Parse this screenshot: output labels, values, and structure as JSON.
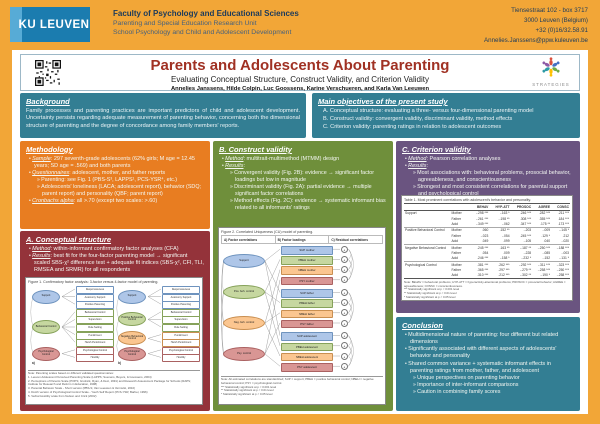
{
  "header": {
    "logo_text": "KU LEUVEN",
    "faculty": "Faculty of Psychology and Educational Sciences",
    "unit": "Parenting and Special Education Research Unit",
    "school": "School Psychology and Child and Adolescent Development",
    "address_lines": [
      "Tiensestraat 102 - box 3717",
      "3000 Leuven (Belgium)",
      "+32 (0)16/32.58.91",
      "Annelies.Janssens@ppw.kuleuven.be"
    ]
  },
  "title_block": {
    "title": "Parents and Adolescents About Parenting",
    "subtitle": "Evaluating Conceptual Structure, Construct Validity, and Criterion Validity",
    "authors": "Annelies Janssens, Hilde Colpin, Luc Goossens, Karine Verschueren, and Karla Van Leeuwen",
    "logo_caption": "STRATEGIES"
  },
  "boxes": {
    "background": {
      "title": "Background",
      "text": "Family processes and parenting practices are important predictors of child and adolescent development. Uncertainty persists regarding adequate measurement of parenting behavior, concerning both the dimensional structure of parenting and the degree of concordance among family members' reports."
    },
    "objectives": {
      "title": "Main objectives of the present study",
      "items": [
        "A. Conceptual structure: evaluating a three- versus four-dimensional parenting model",
        "B. Construct validity: convergent validity, discriminant validity, method effects",
        "C. Criterion validity: parenting ratings in relation to adolescent outcomes"
      ]
    },
    "methodology": {
      "title": "Methodology",
      "bullets": [
        {
          "lead": "Sample",
          "rest": ": 297 seventh-grade adolescents (62% girls; M age = 12.45 years; SD age = .569) and both parents"
        },
        {
          "lead": "Questionnaires",
          "rest": ": adolescent, mother, and father reports",
          "subs": [
            "Parenting: see Fig. 1 (PBS-S³, LAPPS¹, PCS-YSR⁴, etc.)",
            "Adolescents' loneliness (LACA; adolescent report), behavior (SDQ; parent report) and personality (QBF; parent report)"
          ]
        },
        {
          "lead": "Cronbachs alpha",
          "rest": ": all >.70 (except two scales: >.60)"
        }
      ]
    },
    "conceptual": {
      "title": "A. Conceptual structure",
      "bullets": [
        {
          "lead": "Method",
          "rest": ": within-informant confirmatory factor analyses (CFA)"
        },
        {
          "lead": "Results",
          "rest": ": best fit for the four-factor parenting model → significant scaled SBS-χ² difference test + adequate fit indices (SBS-χ², CFI, TLI, RMSEA and SRMR) for all respondents"
        }
      ]
    },
    "construct": {
      "title": "B. Construct validity",
      "bullets": [
        {
          "lead": "Method",
          "rest": ": multitrait-multimethod (MTMM) design"
        },
        {
          "lead": "Results",
          "rest": ":",
          "subs": [
            "Convergent validity (Fig. 2B): evidence → significant factor loadings but low in magnitude",
            "Discriminant validity (Fig. 2A): partial evidence → multiple significant factor correlations",
            "Method effects (Fig. 2C): evidence → systematic informant bias related to all informants' ratings"
          ]
        }
      ]
    },
    "criterion": {
      "title": "C. Criterion validity",
      "bullets": [
        {
          "lead": "Method",
          "rest": ": Pearson correlation analyses"
        },
        {
          "lead": "Results",
          "rest": ":",
          "subs": [
            "Most associations with: behavioral problems, prosocial behavior, agreeableness, and conscientiousness",
            "Strongest and most consistent correlations for parental support and psychological control"
          ]
        }
      ]
    },
    "conclusion": {
      "title": "Conclusion",
      "bullets": [
        {
          "text": "Multidimensional nature of parenting: four different but related dimensions"
        },
        {
          "text": "Significantly associated with different aspects of adolescents' behavior and personality"
        },
        {
          "text": "Shared common variance + systematic informant effects in parenting ratings from mother, father, and adolescent",
          "subs": [
            "Unique perspectives on parenting behavior",
            "Importance of inter-informant comparisons",
            "Caution in combining family scores"
          ]
        }
      ]
    }
  },
  "palette": {
    "fill": {
      "blue": "#AEC6E8",
      "green": "#C6D7A0",
      "orange": "#FBC690",
      "red": "#D99694"
    },
    "border": {
      "blue": "#6E93BE",
      "green": "#86A25A",
      "orange": "#C98F51",
      "red": "#AA6161"
    }
  },
  "figure1": {
    "caption": "Figure 1. Confirmatory factor analysis: 3-factor versus 4-factor model of parenting.",
    "indicators": [
      "Responsiveness",
      "Autonomy Support",
      "Positive Parenting",
      "Behavioral Control",
      "Supervision",
      "Rule Setting",
      "Punishment",
      "Harsh Punishment",
      "Psychological Control",
      "Hostility"
    ],
    "models": [
      {
        "label": "a)",
        "factors": [
          {
            "name": "Support",
            "color": "blue"
          },
          {
            "name": "Behavioral Control",
            "color": "green"
          },
          {
            "name": "Psychological Control",
            "color": "red"
          }
        ],
        "groups": [
          [
            0,
            1,
            2
          ],
          [
            3,
            4,
            5,
            6,
            7
          ],
          [
            8,
            9
          ]
        ]
      },
      {
        "label": "b)",
        "factors": [
          {
            "name": "Support",
            "color": "blue"
          },
          {
            "name": "Positive Behavioral Control",
            "color": "green"
          },
          {
            "name": "Negative Behavioral Control",
            "color": "orange"
          },
          {
            "name": "Psychological Control",
            "color": "red"
          }
        ],
        "groups": [
          [
            0,
            1,
            2
          ],
          [
            3,
            4,
            5
          ],
          [
            6,
            7
          ],
          [
            8,
            9
          ]
        ]
      }
    ],
    "notes": [
      "Note: Parenting scales based on different validated questionnaires:",
      "1.  Leuven Adolescent Perceived Parenting Scale (LAPPS; Soenens, Beyers, & Goossens, 2004)",
      "2.  Perceptions of Parents Scale (POPS; Grolnick, Ryan, & Deci, 1991) and Research Assessment Package for Schools (RAPS; Institute for Research and Reform in Education, 1998)",
      "3.  Parental Behavior Scale - Short version (PBS-S; Van Leeuwen & Vermulst, 2010)",
      "4.  Dutch version of Psychological Control Scale - Youth Self Report (PCS-YSR; Barber, 1996)",
      "5.  Verbal Hostility scale from Nelson and Crick (2002)"
    ]
  },
  "figure2": {
    "caption": "Figure 2. Correlated Uniqueness (CU) model of parenting.",
    "panels": [
      "A) Factor correlations",
      "B) Factor loadings",
      "C) Residual correlations"
    ],
    "latents": [
      {
        "name": "Support",
        "color": "blue"
      },
      {
        "name": "Pos. beh. control",
        "color": "green"
      },
      {
        "name": "Neg. beh. control",
        "color": "orange"
      },
      {
        "name": "Psy. control",
        "color": "red"
      }
    ],
    "manifests": [
      {
        "label": "SUP mother",
        "color": "blue"
      },
      {
        "label": "PBEH mother",
        "color": "green"
      },
      {
        "label": "NBEH mother",
        "color": "orange"
      },
      {
        "label": "PSY mother",
        "color": "red"
      },
      {
        "label": "SUP father",
        "color": "blue"
      },
      {
        "label": "PBEH father",
        "color": "green"
      },
      {
        "label": "NBEH father",
        "color": "orange"
      },
      {
        "label": "PSY father",
        "color": "red"
      },
      {
        "label": "SUP adolescent",
        "color": "blue"
      },
      {
        "label": "PBEH adolescent",
        "color": "green"
      },
      {
        "label": "NBEH adolescent",
        "color": "orange"
      },
      {
        "label": "PSY adolescent",
        "color": "red"
      }
    ],
    "residual_label": "e",
    "notes": [
      "Note: All estimated correlations are standardized; SUP = support; PBEH = positive behavioral control; NBEH = negative behavioral control; PSY = psychological control.",
      "***  Statistically significant at p < 0.001 level",
      "**  Statistically significant at p < 0.01 level",
      "*  Statistically significant at p < 0.05 level"
    ]
  },
  "table1": {
    "caption": "Table 1. Most prominent correlations with adolescent's behavior and personality.",
    "col_headers": [
      "BEHAV",
      "HYP-ATT",
      "PROSOC",
      "AGREE",
      "CONSC"
    ],
    "groups": [
      {
        "dimension": "Support",
        "rows": [
          {
            "informant": "Mother",
            "values": [
              "-.298 ***",
              "-.163 *",
              ".246 ***",
              ".282 ***",
              ".211 ***"
            ]
          },
          {
            "informant": "Father",
            "values": [
              "-.261 ***",
              "-.198 **",
              ".308 ***",
              ".355 ***",
              ".184 ***"
            ]
          },
          {
            "informant": "Adol",
            "values": [
              "-.349 ***",
              "-.062",
              ".347 ***",
              ".175 **",
              ".173 ***"
            ]
          }
        ]
      },
      {
        "dimension": "Positive Behavioral Control",
        "rows": [
          {
            "informant": "Mother",
            "values": [
              ".060",
              ".152 **",
              "-.203",
              "-.009",
              "-.145 *"
            ]
          },
          {
            "informant": "Father",
            "values": [
              "-.023",
              "-.054",
              ".245 ***",
              ".129 *",
              ".212"
            ]
          },
          {
            "informant": "Adol",
            "values": [
              ".049",
              ".099",
              "-.105",
              ".040",
              "-.020"
            ]
          }
        ]
      },
      {
        "dimension": "Negative Behavioral Control",
        "rows": [
          {
            "informant": "Mother",
            "values": [
              ".245 ***",
              ".163 **",
              "-.187 **",
              "-.250 ***",
              "-.188 ***"
            ]
          },
          {
            "informant": "Father",
            "values": [
              ".054",
              ".009",
              "-.228",
              "-.085",
              "-.003"
            ]
          },
          {
            "informant": "Adol",
            "values": [
              ".246 ***",
              "-.158 *",
              "-.232 *",
              "-.152",
              "-.131 *"
            ]
          }
        ]
      },
      {
        "dimension": "Psychological Control",
        "rows": [
          {
            "informant": "Mother",
            "values": [
              ".381 ***",
              ".262 ***",
              "-.292 ***",
              "-.311 ***",
              "-.323 ***"
            ]
          },
          {
            "informant": "Father",
            "values": [
              ".365 ***",
              ".297 ***",
              "-.279 **",
              "-.258 ***",
              "-.250 ***"
            ]
          },
          {
            "informant": "Adol",
            "values": [
              ".310 ***",
              ".212 ***",
              "-.302 **",
              "-.190 *",
              "-.258 ***"
            ]
          }
        ]
      }
    ],
    "notes": [
      "Note: BEHAV = behavioral problems; HYP-ATT = hyperactivity-attentional problems; PROSOC = prosocial behavior; AGREE = agreeableness; CONSC = conscientiousness.",
      "***  Statistically significant at p < 0.001 level",
      "**  Statistically significant at p < 0.01 level",
      "*  Statistically significant at p < 0.05 level"
    ]
  }
}
